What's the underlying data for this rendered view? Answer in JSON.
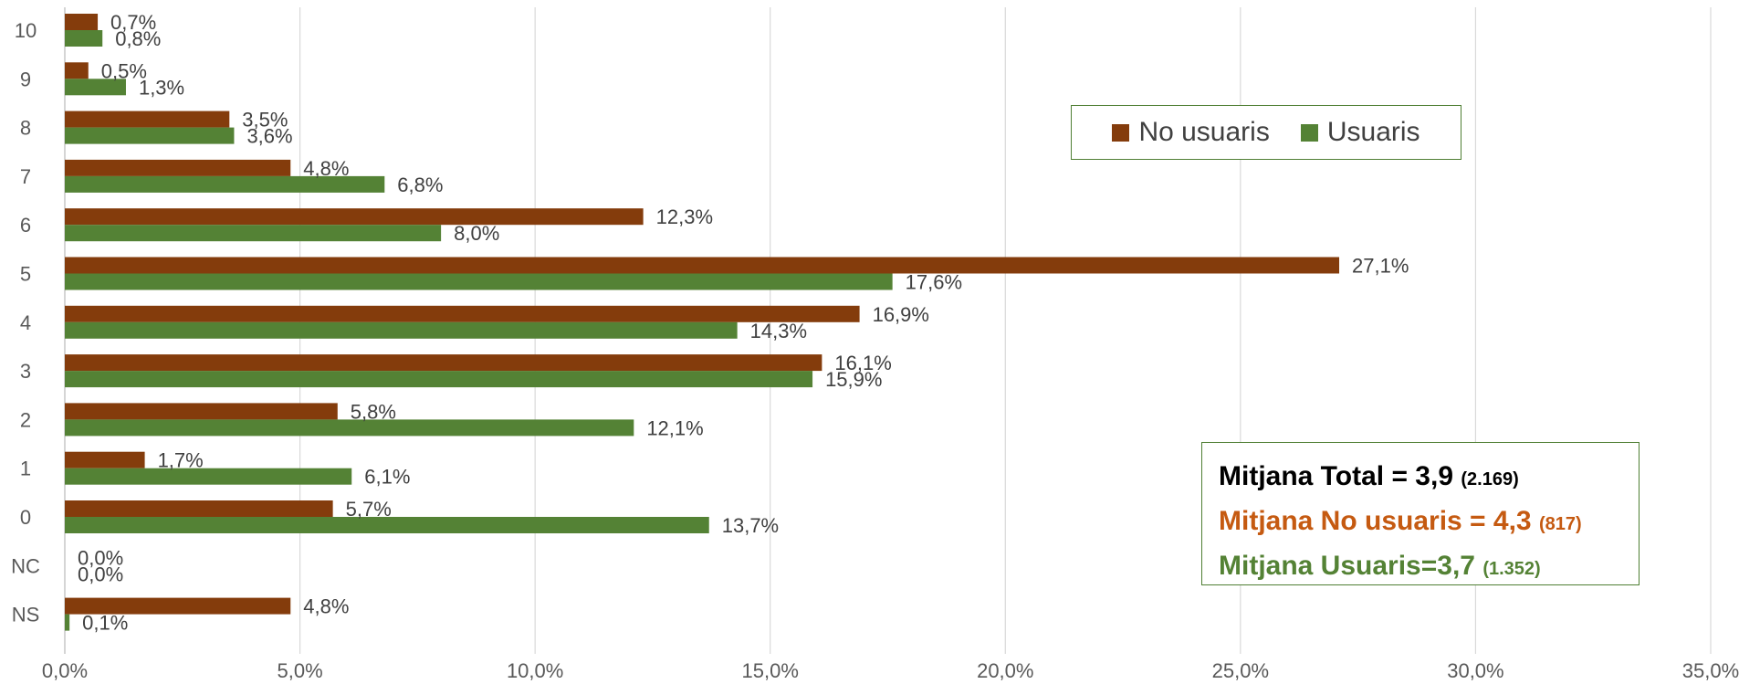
{
  "chart_data": {
    "type": "bar",
    "orientation": "horizontal",
    "categories": [
      "10",
      "9",
      "8",
      "7",
      "6",
      "5",
      "4",
      "3",
      "2",
      "1",
      "0",
      "NC",
      "NS"
    ],
    "series": [
      {
        "name": "No usuaris",
        "color": "#843c0c",
        "values": [
          0.7,
          0.5,
          3.5,
          4.8,
          12.3,
          27.1,
          16.9,
          16.1,
          5.8,
          1.7,
          5.7,
          0.0,
          4.8
        ],
        "labels": [
          "0,7%",
          "0,5%",
          "3,5%",
          "4,8%",
          "12,3%",
          "27,1%",
          "16,9%",
          "16,1%",
          "5,8%",
          "1,7%",
          "5,7%",
          "0,0%",
          "4,8%"
        ]
      },
      {
        "name": "Usuaris",
        "color": "#548235",
        "values": [
          0.8,
          1.3,
          3.6,
          6.8,
          8.0,
          17.6,
          14.3,
          15.9,
          12.1,
          6.1,
          13.7,
          0.0,
          0.1
        ],
        "labels": [
          "0,8%",
          "1,3%",
          "3,6%",
          "6,8%",
          "8,0%",
          "17,6%",
          "14,3%",
          "15,9%",
          "12,1%",
          "6,1%",
          "13,7%",
          "0,0%",
          "0,1%"
        ]
      }
    ],
    "xlim": [
      0,
      35
    ],
    "xticks": [
      0,
      5,
      10,
      15,
      20,
      25,
      30,
      35
    ],
    "xtick_labels": [
      "0,0%",
      "5,0%",
      "10,0%",
      "15,0%",
      "20,0%",
      "25,0%",
      "30,0%",
      "35,0%"
    ],
    "grid": "vertical",
    "legend_placement": "top-right"
  },
  "legend": {
    "no_usuaris": "No usuaris",
    "usuaris": "Usuaris"
  },
  "stats": {
    "total_label": "Mitjana Total = 3,9",
    "total_n": "(2.169)",
    "no_usuaris_label": "Mitjana No usuaris = 4,3",
    "no_usuaris_n": "(817)",
    "usuaris_label": "Mitjana Usuaris=3,7",
    "usuaris_n": "(1.352)",
    "colors": {
      "total": "#000000",
      "no_usuaris": "#c55a11",
      "usuaris": "#548235"
    }
  }
}
